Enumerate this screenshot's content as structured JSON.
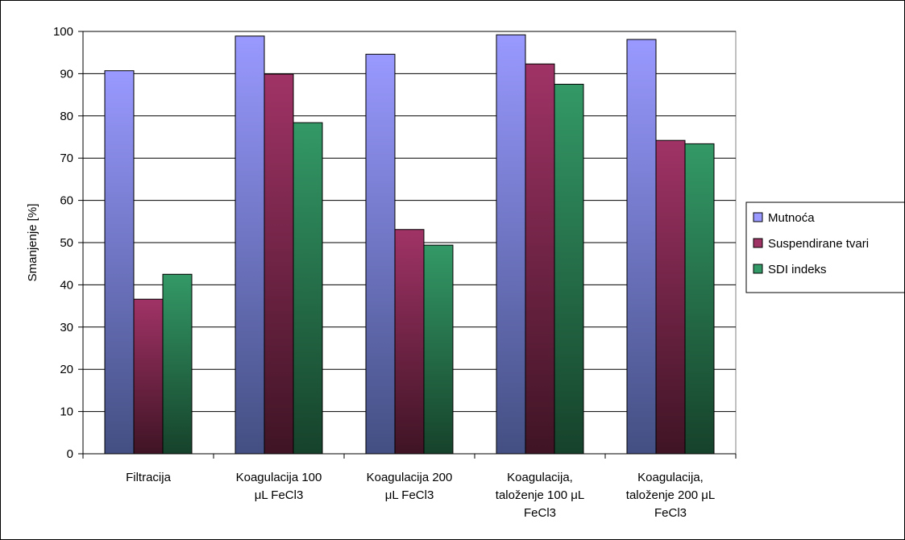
{
  "chart_data": {
    "type": "bar",
    "title": "",
    "xlabel": "",
    "ylabel": "Smanjenje [%]",
    "ylim": [
      0,
      100
    ],
    "yticks": [
      0,
      10,
      20,
      30,
      40,
      50,
      60,
      70,
      80,
      90,
      100
    ],
    "grid": true,
    "legend_position": "right",
    "categories": [
      [
        "Filtracija"
      ],
      [
        "Koagulacija 100",
        "μL FeCl3"
      ],
      [
        "Koagulacija 200",
        "μL FeCl3"
      ],
      [
        "Koagulacija,",
        "taloženje 100 μL",
        "FeCl3"
      ],
      [
        "Koagulacija,",
        "taloženje 200 μL",
        "FeCl3"
      ]
    ],
    "series": [
      {
        "name": "Mutnoća",
        "values": [
          90.7,
          98.9,
          94.6,
          99.2,
          98.1
        ],
        "color_top": "#9999ff",
        "color_bottom": "#434f82"
      },
      {
        "name": "Suspendirane tvari",
        "values": [
          36.6,
          89.9,
          53.1,
          92.3,
          74.2
        ],
        "color_top": "#a03366",
        "color_bottom": "#3f1424"
      },
      {
        "name": "SDI indeks",
        "values": [
          42.5,
          78.4,
          49.4,
          87.5,
          73.4
        ],
        "color_top": "#339966",
        "color_bottom": "#16422b"
      }
    ]
  }
}
